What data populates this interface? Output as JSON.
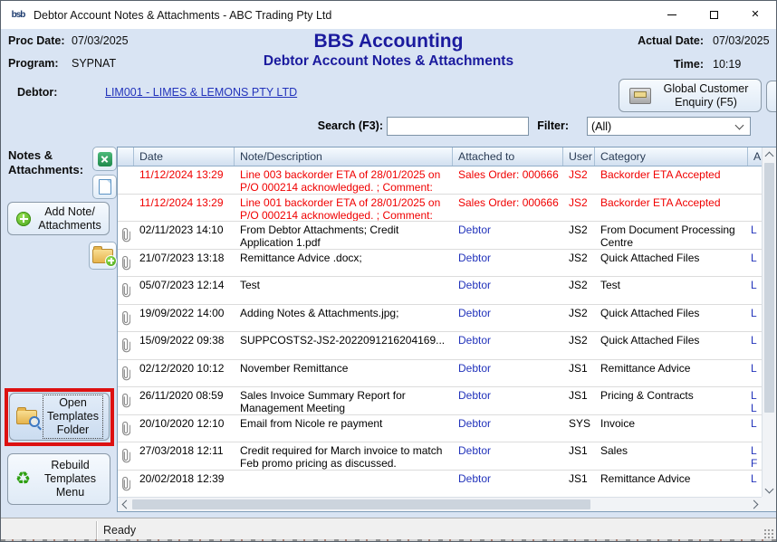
{
  "window": {
    "title": "Debtor Account Notes & Attachments - ABC Trading Pty Ltd"
  },
  "icons": {
    "app_logo": "bsb",
    "minimize": "thin-dash",
    "maximize": "hollow-square",
    "close": "✕",
    "excel_export": "green-square-white-x",
    "new_document": "blank-page",
    "add_plus": "green-circle-plus",
    "attach_folder": "folder-with-plus",
    "open_templates_folder": "folder-with-magnifier",
    "rebuild_recycle": "♻",
    "global_enquiry": "card-cabinet",
    "paperclip": "paperclip",
    "filter_chevron": "chevron-down"
  },
  "header": {
    "proc_date_label": "Proc Date:",
    "proc_date": "07/03/2025",
    "program_label": "Program:",
    "program": "SYPNAT",
    "title": "BBS Accounting",
    "subtitle": "Debtor Account Notes & Attachments",
    "actual_date_label": "Actual Date:",
    "actual_date": "07/03/2025",
    "time_label": "Time:",
    "time": "10:19"
  },
  "debtor": {
    "label": "Debtor:",
    "link": "LIM001 - LIMES & LEMONS PTY LTD"
  },
  "global_button": {
    "line1": "Global Customer",
    "line2": "Enquiry (F5)"
  },
  "search": {
    "label": "Search (F3):",
    "value": "",
    "filter_label": "Filter:",
    "filter_value": "(All)"
  },
  "sidebar": {
    "section_line1": "Notes &",
    "section_line2": "Attachments:",
    "add_note": {
      "line1": "Add Note/",
      "line2": "Attachments"
    },
    "open_templates": {
      "line1": "Open",
      "line2": "Templates",
      "line3": "Folder"
    },
    "rebuild": {
      "line1": "Rebuild",
      "line2": "Templates",
      "line3": "Menu"
    }
  },
  "table": {
    "columns": [
      "",
      "Date",
      "Note/Description",
      "Attached to",
      "User",
      "Category",
      "A"
    ],
    "rows": [
      {
        "date": "11/12/2024 13:29",
        "note": "Line 003 backorder ETA of 28/01/2025 on P/O 000214 acknowledged. ; Comment:",
        "attached": "Sales Order: 000666",
        "user": "JS2",
        "category": "Backorder ETA Accepted",
        "extra": [],
        "red": true,
        "paperclip": false,
        "link": false
      },
      {
        "date": "11/12/2024 13:29",
        "note": "Line 001 backorder ETA of 28/01/2025 on P/O 000214 acknowledged. ; Comment:",
        "attached": "Sales Order: 000666",
        "user": "JS2",
        "category": "Backorder ETA Accepted",
        "extra": [],
        "red": true,
        "paperclip": false,
        "link": false
      },
      {
        "date": "02/11/2023 14:10",
        "note": "From Debtor Attachments; Credit Application 1.pdf",
        "attached": "Debtor",
        "user": "JS2",
        "category": "From Document Processing Centre",
        "extra": [
          "L"
        ],
        "red": false,
        "paperclip": true,
        "link": true
      },
      {
        "date": "21/07/2023 13:18",
        "note": "Remittance Advice .docx;",
        "attached": "Debtor",
        "user": "JS2",
        "category": "Quick Attached Files",
        "extra": [
          "L"
        ],
        "red": false,
        "paperclip": true,
        "link": true
      },
      {
        "date": "05/07/2023 12:14",
        "note": "Test",
        "attached": "Debtor",
        "user": "JS2",
        "category": "Test",
        "extra": [
          "L"
        ],
        "red": false,
        "paperclip": true,
        "link": true
      },
      {
        "date": "19/09/2022 14:00",
        "note": "Adding Notes & Attachments.jpg;",
        "attached": "Debtor",
        "user": "JS2",
        "category": "Quick Attached Files",
        "extra": [
          "L"
        ],
        "red": false,
        "paperclip": true,
        "link": true
      },
      {
        "date": "15/09/2022 09:38",
        "note": "SUPPCOSTS2-JS2-2022091216204169...",
        "attached": "Debtor",
        "user": "JS2",
        "category": "Quick Attached Files",
        "extra": [
          "L"
        ],
        "red": false,
        "paperclip": true,
        "link": true
      },
      {
        "date": "02/12/2020 10:12",
        "note": "November Remittance",
        "attached": "Debtor",
        "user": "JS1",
        "category": "Remittance Advice",
        "extra": [
          "L"
        ],
        "red": false,
        "paperclip": true,
        "link": true
      },
      {
        "date": "26/11/2020 08:59",
        "note": "Sales Invoice Summary Report for Management Meeting",
        "attached": "Debtor",
        "user": "JS1",
        "category": "Pricing & Contracts",
        "extra": [
          "L",
          "L"
        ],
        "red": false,
        "paperclip": true,
        "link": true
      },
      {
        "date": "20/10/2020 12:10",
        "note": "Email from Nicole re payment",
        "attached": "Debtor",
        "user": "SYS",
        "category": "Invoice",
        "extra": [
          "L"
        ],
        "red": false,
        "paperclip": true,
        "link": true
      },
      {
        "date": "27/03/2018 12:11",
        "note": "Credit required for March invoice to match Feb promo pricing as discussed.",
        "attached": "Debtor",
        "user": "JS1",
        "category": "Sales",
        "extra": [
          "L",
          "F"
        ],
        "red": false,
        "paperclip": true,
        "link": true
      },
      {
        "date": "20/02/2018 12:39",
        "note": "",
        "attached": "Debtor",
        "user": "JS1",
        "category": "Remittance Advice",
        "extra": [
          "L"
        ],
        "red": false,
        "paperclip": true,
        "link": true
      }
    ]
  },
  "statusbar": {
    "text": "Ready"
  },
  "colors": {
    "window_bg": "#d9e4f3",
    "accent_navy": "#1b1b9e",
    "link_blue": "#2233bb",
    "alert_red": "#f00000",
    "annotation_red": "#dd1111"
  }
}
